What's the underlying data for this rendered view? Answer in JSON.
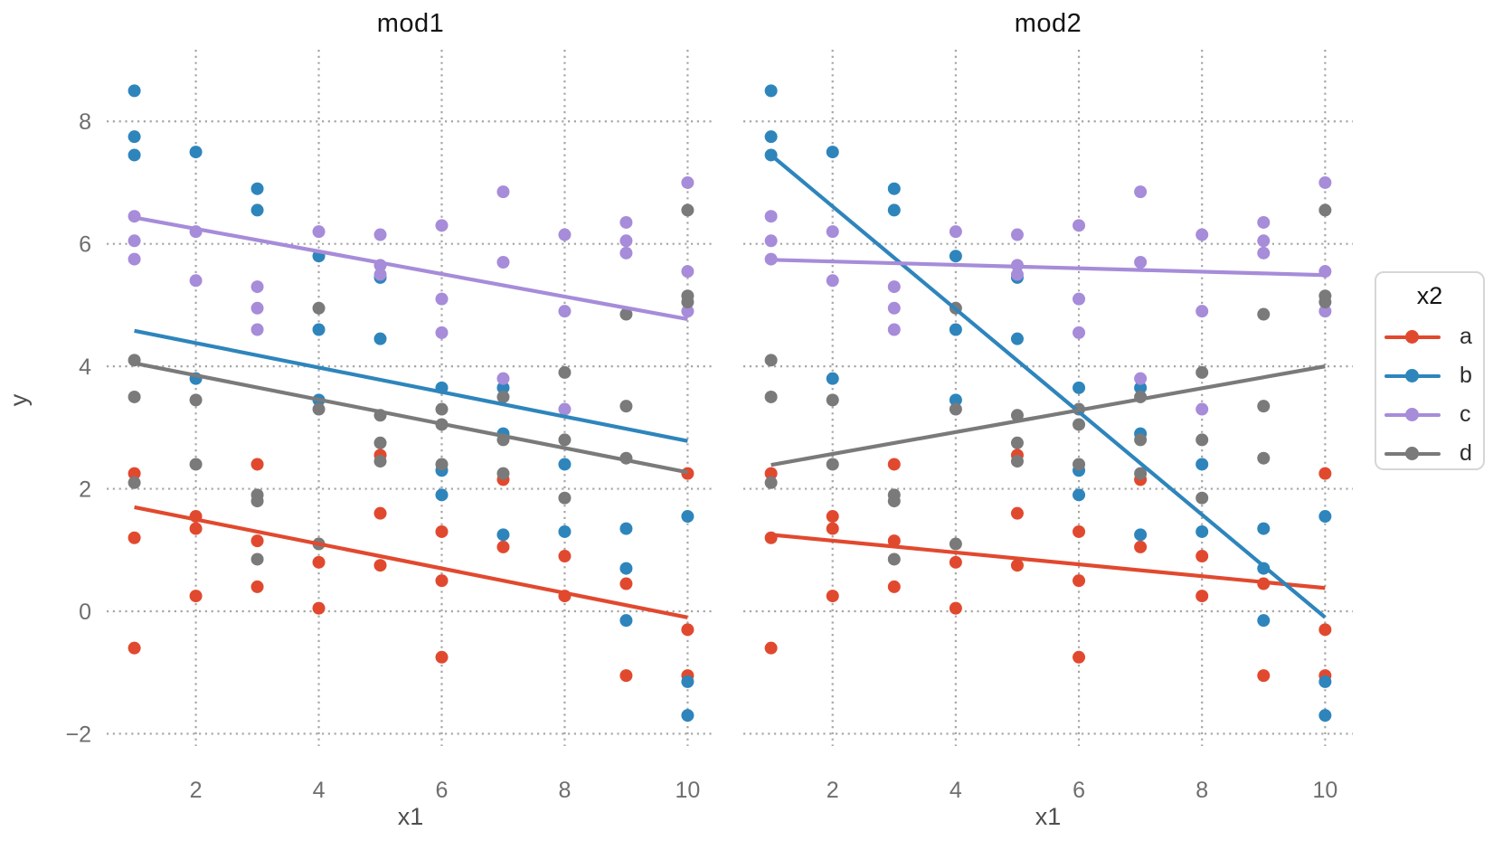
{
  "chart_data": {
    "type": "scatter",
    "facets": [
      {
        "title": "mod1"
      },
      {
        "title": "mod2"
      }
    ],
    "xlabel": "x1",
    "ylabel": "y",
    "xlim": [
      0.55,
      10.45
    ],
    "ylim": [
      -2.2,
      9.17
    ],
    "x_ticks": [
      {
        "value": 2,
        "label": "2"
      },
      {
        "value": 4,
        "label": "4"
      },
      {
        "value": 6,
        "label": "6"
      },
      {
        "value": 8,
        "label": "8"
      },
      {
        "value": 10,
        "label": "10"
      }
    ],
    "y_ticks": [
      {
        "value": 8,
        "label": "8"
      },
      {
        "value": 6,
        "label": "6"
      },
      {
        "value": 4,
        "label": "4"
      },
      {
        "value": 2,
        "label": "2"
      },
      {
        "value": 0,
        "label": "0"
      },
      {
        "value": -2,
        "label": "−2"
      }
    ],
    "grid_style": "dotted",
    "grid_color": "#A6A6A6",
    "tick_label_color": "#6E6E6E",
    "axis_title_color": "#4E4E4E",
    "facet_title_color": "#141414",
    "legend": {
      "title": "x2",
      "position": "right",
      "border_color": "#D6D6D6",
      "items": [
        {
          "label": "a",
          "color": "#E1492F"
        },
        {
          "label": "b",
          "color": "#2E85BC"
        },
        {
          "label": "c",
          "color": "#A68CD9"
        },
        {
          "label": "d",
          "color": "#7A7A7A"
        }
      ]
    },
    "groups": [
      {
        "name": "a",
        "color": "#E1492F",
        "points": [
          [
            1,
            2.25
          ],
          [
            1,
            1.2
          ],
          [
            1,
            -0.6
          ],
          [
            2,
            1.55
          ],
          [
            2,
            1.35
          ],
          [
            2,
            0.25
          ],
          [
            3,
            2.4
          ],
          [
            3,
            1.15
          ],
          [
            3,
            0.4
          ],
          [
            4,
            0.8
          ],
          [
            4,
            0.05
          ],
          [
            5,
            2.55
          ],
          [
            5,
            1.6
          ],
          [
            5,
            0.75
          ],
          [
            6,
            1.3
          ],
          [
            6,
            0.5
          ],
          [
            6,
            -0.75
          ],
          [
            7,
            2.15
          ],
          [
            7,
            1.05
          ],
          [
            8,
            0.9
          ],
          [
            8,
            0.25
          ],
          [
            9,
            0.45
          ],
          [
            9,
            -1.05
          ],
          [
            10,
            2.25
          ],
          [
            10,
            -0.3
          ],
          [
            10,
            -1.05
          ]
        ],
        "fit_lines": {
          "mod1": {
            "x": [
              1,
              10
            ],
            "y": [
              1.7,
              -0.1
            ]
          },
          "mod2": {
            "x": [
              1,
              10
            ],
            "y": [
              1.25,
              0.38
            ]
          }
        }
      },
      {
        "name": "b",
        "color": "#2E85BC",
        "points": [
          [
            1,
            8.5
          ],
          [
            1,
            7.75
          ],
          [
            1,
            7.45
          ],
          [
            2,
            7.5
          ],
          [
            2,
            3.8
          ],
          [
            3,
            6.9
          ],
          [
            3,
            6.55
          ],
          [
            4,
            5.8
          ],
          [
            4,
            4.6
          ],
          [
            4,
            3.45
          ],
          [
            5,
            5.45
          ],
          [
            5,
            4.45
          ],
          [
            6,
            3.65
          ],
          [
            6,
            2.3
          ],
          [
            6,
            1.9
          ],
          [
            7,
            3.65
          ],
          [
            7,
            2.9
          ],
          [
            7,
            1.25
          ],
          [
            8,
            2.4
          ],
          [
            8,
            1.3
          ],
          [
            9,
            1.35
          ],
          [
            9,
            0.7
          ],
          [
            9,
            -0.15
          ],
          [
            10,
            1.55
          ],
          [
            10,
            -1.15
          ],
          [
            10,
            -1.7
          ]
        ],
        "fit_lines": {
          "mod1": {
            "x": [
              1,
              10
            ],
            "y": [
              4.58,
              2.78
            ]
          },
          "mod2": {
            "x": [
              1,
              10
            ],
            "y": [
              7.45,
              -0.1
            ]
          }
        }
      },
      {
        "name": "c",
        "color": "#A68CD9",
        "points": [
          [
            1,
            6.45
          ],
          [
            1,
            6.05
          ],
          [
            1,
            5.75
          ],
          [
            2,
            6.2
          ],
          [
            2,
            5.4
          ],
          [
            3,
            5.3
          ],
          [
            3,
            4.95
          ],
          [
            3,
            4.6
          ],
          [
            4,
            6.2
          ],
          [
            5,
            6.15
          ],
          [
            5,
            5.65
          ],
          [
            5,
            5.5
          ],
          [
            6,
            6.3
          ],
          [
            6,
            5.1
          ],
          [
            6,
            4.55
          ],
          [
            7,
            6.85
          ],
          [
            7,
            5.7
          ],
          [
            7,
            3.8
          ],
          [
            8,
            6.15
          ],
          [
            8,
            4.9
          ],
          [
            8,
            3.3
          ],
          [
            9,
            6.35
          ],
          [
            9,
            6.05
          ],
          [
            9,
            5.85
          ],
          [
            10,
            7.0
          ],
          [
            10,
            5.55
          ],
          [
            10,
            4.9
          ]
        ],
        "fit_lines": {
          "mod1": {
            "x": [
              1,
              10
            ],
            "y": [
              6.43,
              4.77
            ]
          },
          "mod2": {
            "x": [
              1,
              10
            ],
            "y": [
              5.74,
              5.49
            ]
          }
        }
      },
      {
        "name": "d",
        "color": "#7A7A7A",
        "points": [
          [
            1,
            4.1
          ],
          [
            1,
            3.5
          ],
          [
            1,
            2.1
          ],
          [
            2,
            3.45
          ],
          [
            2,
            2.4
          ],
          [
            3,
            1.9
          ],
          [
            3,
            1.8
          ],
          [
            3,
            0.85
          ],
          [
            4,
            4.95
          ],
          [
            4,
            3.3
          ],
          [
            4,
            1.1
          ],
          [
            5,
            3.2
          ],
          [
            5,
            2.75
          ],
          [
            5,
            2.45
          ],
          [
            6,
            3.3
          ],
          [
            6,
            3.05
          ],
          [
            6,
            2.4
          ],
          [
            7,
            3.5
          ],
          [
            7,
            2.8
          ],
          [
            7,
            2.25
          ],
          [
            8,
            3.9
          ],
          [
            8,
            2.8
          ],
          [
            8,
            1.85
          ],
          [
            9,
            4.85
          ],
          [
            9,
            3.35
          ],
          [
            9,
            2.5
          ],
          [
            10,
            6.55
          ],
          [
            10,
            5.15
          ],
          [
            10,
            5.05
          ]
        ],
        "fit_lines": {
          "mod1": {
            "x": [
              1,
              10
            ],
            "y": [
              4.05,
              2.27
            ]
          },
          "mod2": {
            "x": [
              1,
              10
            ],
            "y": [
              2.39,
              4.0
            ]
          }
        }
      }
    ]
  }
}
